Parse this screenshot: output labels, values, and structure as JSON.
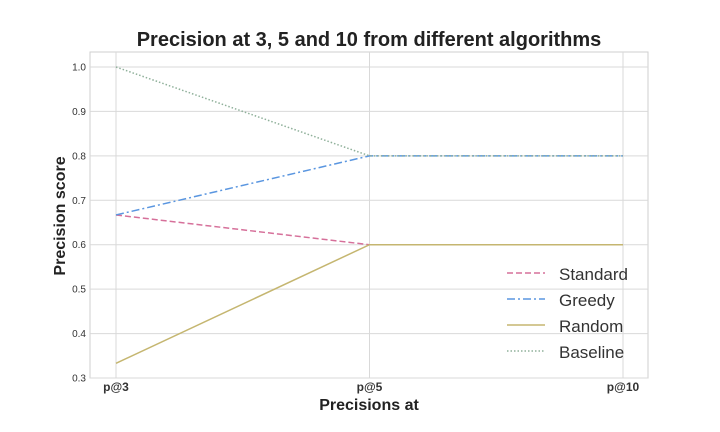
{
  "chart_data": {
    "type": "line",
    "title": "Precision at 3, 5 and 10 from different algorithms",
    "xlabel": "Precisions at",
    "ylabel": "Precision score",
    "categories": [
      "p@3",
      "p@5",
      "p@10"
    ],
    "ylim": [
      0.3,
      1.0
    ],
    "yticks": [
      "0.3",
      "0.4",
      "0.5",
      "0.6",
      "0.7",
      "0.8",
      "0.9",
      "1.0"
    ],
    "grid": true,
    "legend_position": "lower-right",
    "series": [
      {
        "name": "Standard",
        "values": [
          0.667,
          0.6,
          0.6
        ],
        "color": "#d6709a",
        "dash": "dashed"
      },
      {
        "name": "Greedy",
        "values": [
          0.667,
          0.8,
          0.8
        ],
        "color": "#5a96e0",
        "dash": "dashdot"
      },
      {
        "name": "Random",
        "values": [
          0.333,
          0.6,
          0.6
        ],
        "color": "#c5b670",
        "dash": "solid"
      },
      {
        "name": "Baseline",
        "values": [
          1.0,
          0.8,
          0.8
        ],
        "color": "#8fb09a",
        "dash": "dotted"
      }
    ]
  }
}
